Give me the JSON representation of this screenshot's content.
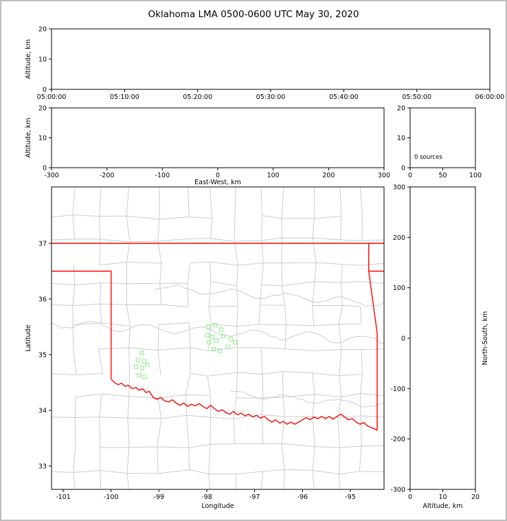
{
  "title": "Oklahoma LMA 0500-0600 UTC May 30, 2020",
  "colors": {
    "background": "#ffffff",
    "frame_border": "#bdbdbd",
    "axis": "#000000",
    "county_lines": "#cccccc",
    "state_border": "#ff0000",
    "source_marker": "#90ee90"
  },
  "chart_data": {
    "type": "multi-panel-scatter",
    "title": "Oklahoma LMA 0500-0600 UTC May 30, 2020",
    "panels": [
      {
        "id": "time_height",
        "name": "time-height-panel",
        "xlabel": "",
        "ylabel": "Altitude, km",
        "xlim": [
          0,
          3600
        ],
        "ylim": [
          0,
          20
        ],
        "xticks": [
          {
            "v": 0,
            "label": "05:00:00"
          },
          {
            "v": 600,
            "label": "05:10:00"
          },
          {
            "v": 1200,
            "label": "05:20:00"
          },
          {
            "v": 1800,
            "label": "05:30:00"
          },
          {
            "v": 2400,
            "label": "05:40:00"
          },
          {
            "v": 3000,
            "label": "05:50:00"
          },
          {
            "v": 3600,
            "label": "06:00:00"
          }
        ],
        "yticks": [
          {
            "v": 0,
            "label": "0"
          },
          {
            "v": 10,
            "label": "10"
          },
          {
            "v": 20,
            "label": "20"
          }
        ],
        "points": []
      },
      {
        "id": "ew_height",
        "name": "east-west-height-panel",
        "xlabel": "East-West, km",
        "ylabel": "Altitude, km",
        "xlim": [
          -300,
          300
        ],
        "ylim": [
          0,
          20
        ],
        "xticks": [
          {
            "v": -300,
            "label": "-300"
          },
          {
            "v": -200,
            "label": "-200"
          },
          {
            "v": -100,
            "label": "-100"
          },
          {
            "v": 0,
            "label": "0"
          },
          {
            "v": 100,
            "label": "100"
          },
          {
            "v": 200,
            "label": "200"
          },
          {
            "v": 300,
            "label": "300"
          }
        ],
        "yticks": [
          {
            "v": 0,
            "label": "0"
          },
          {
            "v": 10,
            "label": "10"
          },
          {
            "v": 20,
            "label": "20"
          }
        ],
        "points": []
      },
      {
        "id": "histogram",
        "name": "altitude-histogram-panel",
        "xlabel": "",
        "ylabel": "",
        "xlim": [
          0,
          100
        ],
        "ylim": [
          0,
          20
        ],
        "xticks": [
          {
            "v": 0,
            "label": "0"
          },
          {
            "v": 50,
            "label": "50"
          },
          {
            "v": 100,
            "label": "100"
          }
        ],
        "yticks": [
          {
            "v": 0,
            "label": "0"
          },
          {
            "v": 10,
            "label": "10"
          },
          {
            "v": 20,
            "label": "20"
          }
        ],
        "annotation": "0 sources",
        "points": []
      },
      {
        "id": "plan_view",
        "name": "plan-view-map-panel",
        "xlabel": "Longitude",
        "ylabel": "Latitude",
        "xlim": [
          -101.244,
          -94.297
        ],
        "ylim": [
          32.58,
          38.012
        ],
        "xticks": [
          {
            "v": -101,
            "label": "-101"
          },
          {
            "v": -100,
            "label": "-100"
          },
          {
            "v": -99,
            "label": "-99"
          },
          {
            "v": -98,
            "label": "-98"
          },
          {
            "v": -97,
            "label": "-97"
          },
          {
            "v": -96,
            "label": "-96"
          },
          {
            "v": -95,
            "label": "-95"
          }
        ],
        "yticks": [
          {
            "v": 33,
            "label": "33"
          },
          {
            "v": 34,
            "label": "34"
          },
          {
            "v": 35,
            "label": "35"
          },
          {
            "v": 36,
            "label": "36"
          },
          {
            "v": 37,
            "label": "37"
          }
        ],
        "points": [
          [
            -97.97,
            35.5
          ],
          [
            -97.83,
            35.53
          ],
          [
            -97.7,
            35.45
          ],
          [
            -97.99,
            35.35
          ],
          [
            -97.88,
            35.32
          ],
          [
            -97.95,
            35.22
          ],
          [
            -97.8,
            35.25
          ],
          [
            -97.66,
            35.33
          ],
          [
            -97.5,
            35.28
          ],
          [
            -97.41,
            35.22
          ],
          [
            -97.86,
            35.1
          ],
          [
            -97.73,
            35.07
          ],
          [
            -97.56,
            35.14
          ],
          [
            -99.36,
            35.03
          ],
          [
            -99.44,
            34.9
          ],
          [
            -99.31,
            34.88
          ],
          [
            -99.48,
            34.78
          ],
          [
            -99.35,
            34.76
          ],
          [
            -99.24,
            34.82
          ],
          [
            -99.42,
            34.63
          ],
          [
            -99.3,
            34.6
          ]
        ]
      },
      {
        "id": "ns_height",
        "name": "north-south-height-panel",
        "xlabel": "Altitude, km",
        "ylabel": "North-South, km",
        "ylabel_side": "right",
        "xlim": [
          0,
          20
        ],
        "ylim": [
          -300,
          300
        ],
        "xticks": [
          {
            "v": 0,
            "label": "0"
          },
          {
            "v": 10,
            "label": "10"
          },
          {
            "v": 20,
            "label": "20"
          }
        ],
        "yticks": [
          {
            "v": -300,
            "label": "-300"
          },
          {
            "v": -200,
            "label": "-200"
          },
          {
            "v": -100,
            "label": "-100"
          },
          {
            "v": 0,
            "label": "0"
          },
          {
            "v": 100,
            "label": "100"
          },
          {
            "v": 200,
            "label": "200"
          },
          {
            "v": 300,
            "label": "300"
          }
        ],
        "points": []
      }
    ],
    "basemap": {
      "state_border_lines": [
        [
          [
            -101.25,
            37.0
          ],
          [
            -94.29,
            37.0
          ]
        ],
        [
          [
            -101.25,
            36.5
          ],
          [
            -100.0,
            36.5
          ],
          [
            -100.0,
            34.56
          ]
        ],
        [
          [
            -94.617,
            37.0
          ],
          [
            -94.617,
            36.5
          ],
          [
            -94.44,
            35.39
          ],
          [
            -94.44,
            33.64
          ]
        ],
        [
          [
            -94.617,
            36.5
          ],
          [
            -94.29,
            36.5
          ]
        ]
      ],
      "red_river": [
        [
          -100.0,
          34.56
        ],
        [
          -99.93,
          34.5
        ],
        [
          -99.85,
          34.46
        ],
        [
          -99.78,
          34.49
        ],
        [
          -99.71,
          34.43
        ],
        [
          -99.64,
          34.45
        ],
        [
          -99.56,
          34.39
        ],
        [
          -99.48,
          34.41
        ],
        [
          -99.41,
          34.36
        ],
        [
          -99.34,
          34.39
        ],
        [
          -99.27,
          34.32
        ],
        [
          -99.2,
          34.34
        ],
        [
          -99.12,
          34.23
        ],
        [
          -99.04,
          34.2
        ],
        [
          -98.96,
          34.23
        ],
        [
          -98.88,
          34.17
        ],
        [
          -98.8,
          34.15
        ],
        [
          -98.72,
          34.19
        ],
        [
          -98.64,
          34.13
        ],
        [
          -98.56,
          34.09
        ],
        [
          -98.48,
          34.13
        ],
        [
          -98.4,
          34.07
        ],
        [
          -98.32,
          34.11
        ],
        [
          -98.24,
          34.08
        ],
        [
          -98.16,
          34.12
        ],
        [
          -98.08,
          34.07
        ],
        [
          -98.0,
          34.03
        ],
        [
          -97.92,
          34.09
        ],
        [
          -97.84,
          34.03
        ],
        [
          -97.76,
          33.98
        ],
        [
          -97.68,
          34.01
        ],
        [
          -97.6,
          33.96
        ],
        [
          -97.52,
          33.93
        ],
        [
          -97.44,
          33.98
        ],
        [
          -97.36,
          33.92
        ],
        [
          -97.28,
          33.95
        ],
        [
          -97.2,
          33.9
        ],
        [
          -97.12,
          33.93
        ],
        [
          -97.04,
          33.88
        ],
        [
          -96.96,
          33.91
        ],
        [
          -96.88,
          33.86
        ],
        [
          -96.8,
          33.89
        ],
        [
          -96.72,
          33.83
        ],
        [
          -96.64,
          33.79
        ],
        [
          -96.56,
          33.83
        ],
        [
          -96.48,
          33.77
        ],
        [
          -96.4,
          33.8
        ],
        [
          -96.32,
          33.75
        ],
        [
          -96.24,
          33.79
        ],
        [
          -96.16,
          33.75
        ],
        [
          -96.08,
          33.79
        ],
        [
          -96.0,
          33.83
        ],
        [
          -95.92,
          33.87
        ],
        [
          -95.84,
          33.83
        ],
        [
          -95.76,
          33.88
        ],
        [
          -95.68,
          33.85
        ],
        [
          -95.6,
          33.89
        ],
        [
          -95.52,
          33.85
        ],
        [
          -95.44,
          33.89
        ],
        [
          -95.36,
          33.84
        ],
        [
          -95.28,
          33.89
        ],
        [
          -95.2,
          33.93
        ],
        [
          -95.12,
          33.88
        ],
        [
          -95.04,
          33.83
        ],
        [
          -94.96,
          33.85
        ],
        [
          -94.88,
          33.79
        ],
        [
          -94.8,
          33.75
        ],
        [
          -94.72,
          33.78
        ],
        [
          -94.64,
          33.72
        ],
        [
          -94.56,
          33.69
        ],
        [
          -94.48,
          33.66
        ],
        [
          -94.44,
          33.64
        ]
      ]
    }
  }
}
